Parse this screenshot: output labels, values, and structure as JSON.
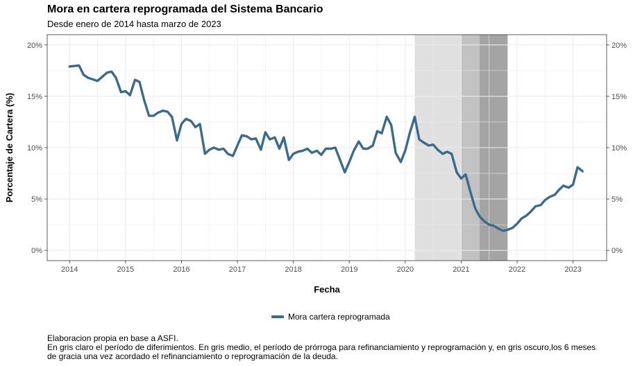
{
  "header": {
    "title": "Mora en cartera reprogramada del Sistema Bancario",
    "subtitle": "Desde enero de 2014 hasta marzo de 2023"
  },
  "legend": {
    "label": "Mora cartera reprogramada"
  },
  "footnote": {
    "line1": "Elaboracion propia en base a ASFI.",
    "line2": "En gris claro el período de diferimientos. En gris medio, el período de prórroga para refinanciamiento y reprogramación y, en gris oscuro,los 6 meses",
    "line3": "de gracia una vez acordado el refinanciamiento o reprogramación de la deuda."
  },
  "colors": {
    "line": "#3a6a8c",
    "band_light": "#e0e0e0",
    "band_medium": "#c2c2c2",
    "band_dark": "#a4a4a4",
    "grid": "#ebebeb"
  },
  "chart_data": {
    "type": "line",
    "title": "Mora en cartera reprogramada del Sistema Bancario",
    "subtitle": "Desde enero de 2014 hasta marzo de 2023",
    "xlabel": "Fecha",
    "ylabel": "Porcentaje de Cartera (%)",
    "xlim": [
      2013.6,
      2023.6
    ],
    "ylim": [
      -1,
      21
    ],
    "x_ticks": [
      2014,
      2015,
      2016,
      2017,
      2018,
      2019,
      2020,
      2021,
      2022,
      2023
    ],
    "x_tick_labels": [
      "2014",
      "2015",
      "2016",
      "2017",
      "2018",
      "2019",
      "2020",
      "2021",
      "2022",
      "2023"
    ],
    "y_ticks": [
      0,
      5,
      10,
      15,
      20
    ],
    "y_tick_labels": [
      "0%",
      "5%",
      "10%",
      "15%",
      "20%"
    ],
    "secondary_y_axis": true,
    "grid": true,
    "legend_position": "bottom",
    "shaded_periods": [
      {
        "start": 2020.17,
        "end": 2021.0,
        "shade": "light"
      },
      {
        "start": 2021.0,
        "end": 2021.33,
        "shade": "medium"
      },
      {
        "start": 2021.33,
        "end": 2021.83,
        "shade": "dark"
      }
    ],
    "series": [
      {
        "name": "Mora cartera reprogramada",
        "x": [
          2014.0,
          2014.17,
          2014.25,
          2014.33,
          2014.5,
          2014.67,
          2014.75,
          2014.83,
          2014.92,
          2015.0,
          2015.08,
          2015.17,
          2015.25,
          2015.33,
          2015.42,
          2015.5,
          2015.58,
          2015.67,
          2015.75,
          2015.83,
          2015.92,
          2016.0,
          2016.08,
          2016.17,
          2016.25,
          2016.33,
          2016.42,
          2016.5,
          2016.58,
          2016.67,
          2016.75,
          2016.83,
          2016.92,
          2017.0,
          2017.08,
          2017.17,
          2017.25,
          2017.33,
          2017.42,
          2017.5,
          2017.58,
          2017.67,
          2017.75,
          2017.83,
          2017.92,
          2018.0,
          2018.08,
          2018.17,
          2018.25,
          2018.33,
          2018.42,
          2018.5,
          2018.58,
          2018.67,
          2018.75,
          2018.92,
          2019.0,
          2019.08,
          2019.17,
          2019.25,
          2019.33,
          2019.42,
          2019.5,
          2019.58,
          2019.67,
          2019.75,
          2019.83,
          2019.92,
          2020.0,
          2020.08,
          2020.17,
          2020.25,
          2020.33,
          2020.42,
          2020.5,
          2020.58,
          2020.67,
          2020.75,
          2020.83,
          2020.92,
          2021.0,
          2021.08,
          2021.17,
          2021.25,
          2021.33,
          2021.42,
          2021.5,
          2021.58,
          2021.67,
          2021.75,
          2021.83,
          2021.92,
          2022.0,
          2022.08,
          2022.17,
          2022.25,
          2022.33,
          2022.42,
          2022.5,
          2022.58,
          2022.67,
          2022.75,
          2022.83,
          2022.92,
          2023.0,
          2023.08,
          2023.17
        ],
        "values": [
          17.9,
          18.0,
          17.1,
          16.8,
          16.5,
          17.3,
          17.4,
          16.8,
          15.4,
          15.5,
          15.1,
          16.6,
          16.4,
          14.7,
          13.1,
          13.1,
          13.4,
          13.6,
          13.5,
          13.0,
          10.7,
          12.3,
          12.8,
          12.6,
          12.0,
          12.3,
          9.4,
          9.8,
          10.0,
          9.8,
          9.9,
          9.4,
          9.2,
          10.2,
          11.2,
          11.1,
          10.8,
          10.9,
          9.8,
          11.5,
          10.8,
          11.0,
          9.9,
          11.0,
          8.8,
          9.4,
          9.6,
          9.7,
          9.9,
          9.5,
          9.7,
          9.3,
          9.9,
          9.9,
          10.0,
          7.6,
          8.6,
          9.7,
          10.6,
          9.9,
          9.9,
          10.2,
          11.6,
          11.4,
          13.0,
          12.2,
          9.5,
          8.6,
          9.7,
          11.4,
          13.0,
          10.8,
          10.5,
          10.2,
          10.3,
          9.8,
          9.4,
          9.6,
          9.4,
          7.6,
          7.0,
          7.4,
          5.6,
          4.1,
          3.3,
          2.8,
          2.5,
          2.4,
          2.1,
          1.9,
          2.0,
          2.2,
          2.6,
          3.1,
          3.4,
          3.8,
          4.3,
          4.4,
          4.9,
          5.2,
          5.4,
          5.9,
          6.3,
          6.1,
          6.4,
          8.1,
          7.7
        ]
      }
    ]
  }
}
